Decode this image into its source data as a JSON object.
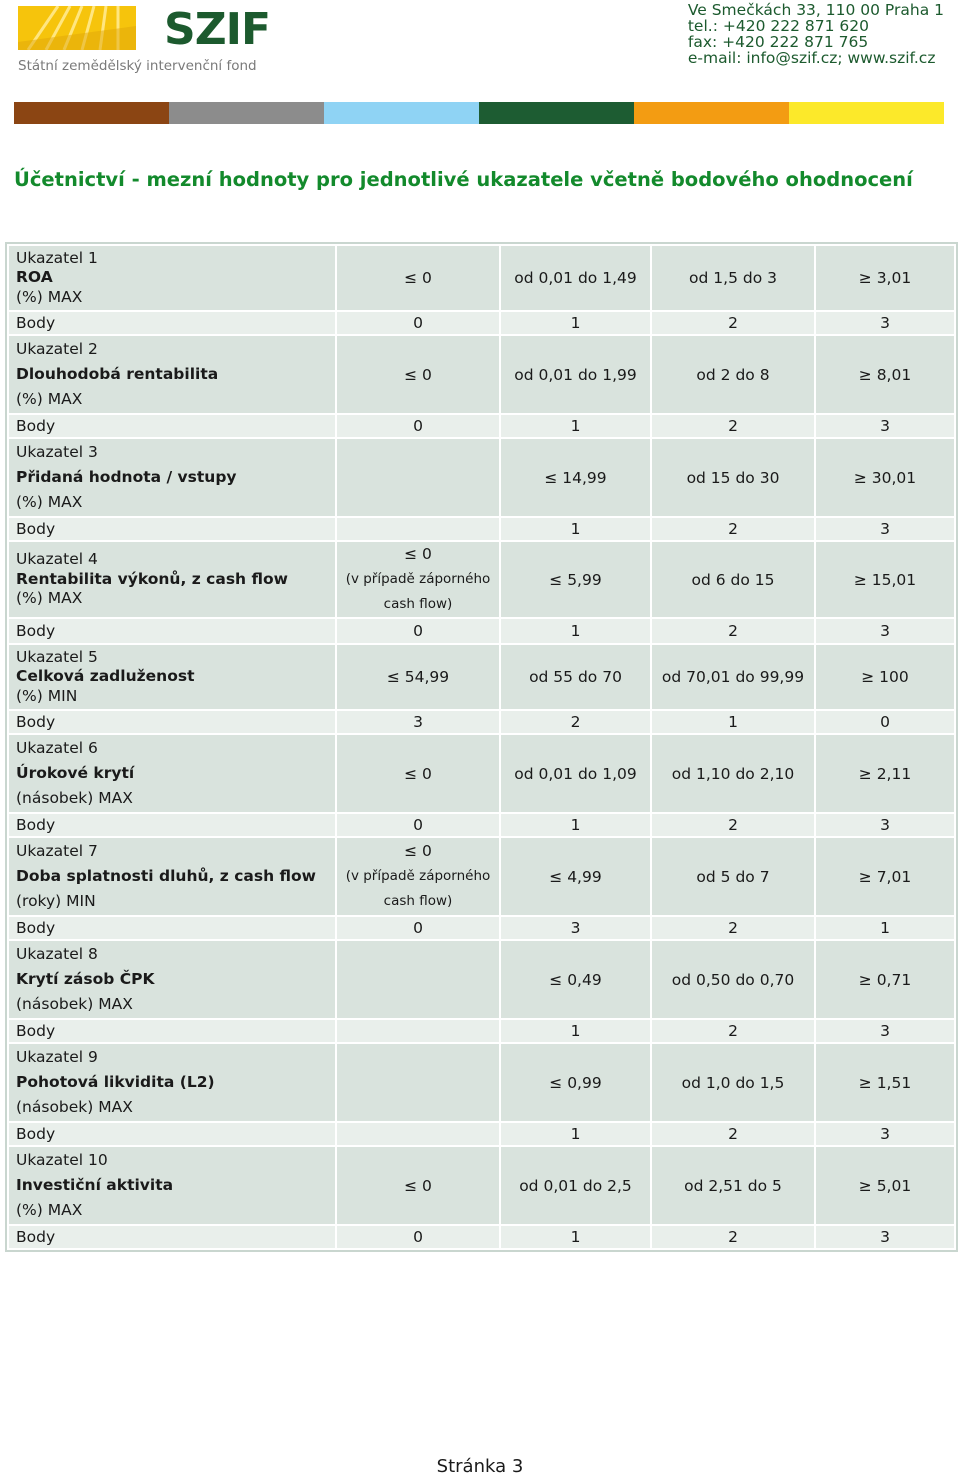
{
  "header": {
    "logo_text": "SZIF",
    "logo_subtitle": "Státní zemědělský intervenční fond",
    "address": "Ve Smečkách 33, 110 00 Praha 1",
    "phone": "tel.: +420 222 871 620",
    "fax": "fax: +420 222 871 765",
    "email_web": "e-mail: info@szif.cz; www.szif.cz",
    "stripe_colors": [
      "#8b4513",
      "#8c8c8c",
      "#8fd3f4",
      "#1d5c32",
      "#f39c12",
      "#fce92a"
    ]
  },
  "title": "Účetnictví - mezní hodnoty pro jednotlivé ukazatele včetně bodového ohodnocení",
  "body_label": "Body",
  "indicators": [
    {
      "number": "Ukazatel 1",
      "name": "ROA",
      "unit": "(%) MAX",
      "thresholds": [
        "≤ 0",
        "od 0,01 do 1,49",
        "od 1,5 do 3",
        "≥ 3,01"
      ],
      "points": [
        "0",
        "1",
        "2",
        "3"
      ]
    },
    {
      "number": "Ukazatel 2",
      "name": "Dlouhodobá rentabilita",
      "unit": "(%) MAX",
      "thresholds": [
        "≤ 0",
        "od 0,01 do 1,99",
        "od 2 do 8",
        "≥ 8,01"
      ],
      "points": [
        "0",
        "1",
        "2",
        "3"
      ]
    },
    {
      "number": "Ukazatel 3",
      "name": "Přidaná hodnota / vstupy",
      "unit": "(%) MAX",
      "thresholds": [
        "",
        "≤ 14,99",
        "od 15 do 30",
        "≥ 30,01"
      ],
      "points": [
        "",
        "1",
        "2",
        "3"
      ]
    },
    {
      "number": "Ukazatel 4",
      "name": "Rentabilita výkonů, z cash flow",
      "unit": "(%) MAX",
      "thresholds": [
        "≤ 0",
        "≤ 5,99",
        "od 6 do 15",
        "≥ 15,01"
      ],
      "first_note": [
        "(v případě záporného",
        "cash flow)"
      ],
      "points": [
        "0",
        "1",
        "2",
        "3"
      ]
    },
    {
      "number": "Ukazatel 5",
      "name": "Celková zadluženost",
      "unit": "(%) MIN",
      "thresholds": [
        "≤ 54,99",
        "od 55 do 70",
        "od 70,01 do 99,99",
        "≥ 100"
      ],
      "points": [
        "3",
        "2",
        "1",
        "0"
      ]
    },
    {
      "number": "Ukazatel 6",
      "name": "Úrokové krytí",
      "unit": "(násobek) MAX",
      "thresholds": [
        "≤ 0",
        "od 0,01 do 1,09",
        "od 1,10 do 2,10",
        "≥ 2,11"
      ],
      "points": [
        "0",
        "1",
        "2",
        "3"
      ]
    },
    {
      "number": "Ukazatel 7",
      "name": "Doba splatnosti dluhů, z cash flow",
      "unit": "(roky) MIN",
      "thresholds": [
        "≤ 0",
        "≤ 4,99",
        "od 5 do 7",
        "≥ 7,01"
      ],
      "first_note": [
        "(v případě záporného",
        "cash flow)"
      ],
      "points": [
        "0",
        "3",
        "2",
        "1"
      ]
    },
    {
      "number": "Ukazatel 8",
      "name": "Krytí zásob ČPK",
      "unit": "(násobek) MAX",
      "thresholds": [
        "",
        "≤ 0,49",
        "od 0,50 do 0,70",
        "≥ 0,71"
      ],
      "points": [
        "",
        "1",
        "2",
        "3"
      ]
    },
    {
      "number": "Ukazatel 9",
      "name": "Pohotová likvidita (L2)",
      "unit": "(násobek) MAX",
      "thresholds": [
        "",
        "≤ 0,99",
        "od 1,0 do 1,5",
        "≥ 1,51"
      ],
      "points": [
        "",
        "1",
        "2",
        "3"
      ]
    },
    {
      "number": "Ukazatel 10",
      "name": "Investiční aktivita",
      "unit": "(%) MAX",
      "thresholds": [
        "≤ 0",
        "od 0,01 do 2,5",
        "od 2,51 do 5",
        "≥ 5,01"
      ],
      "points": [
        "0",
        "1",
        "2",
        "3"
      ]
    }
  ],
  "footer": "Stránka  3"
}
